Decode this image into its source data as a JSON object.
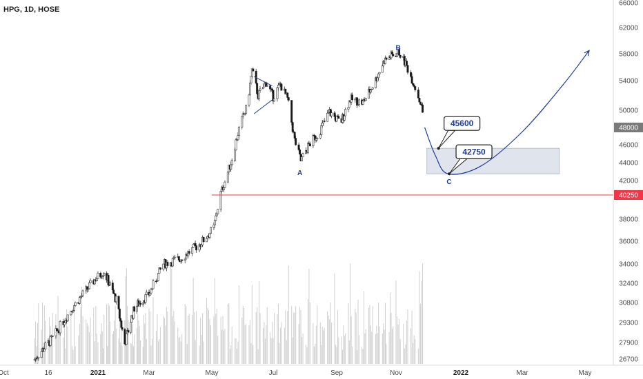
{
  "header": {
    "title": "HPG, 1D, HOSE"
  },
  "colors": {
    "up": "#f2f2f2",
    "down": "#1a1a1a",
    "wick": "#3a3a3a",
    "volume": "#cfcfcf",
    "support_line": "#f23645",
    "wave_path": "#1f3b99",
    "target_zone": "#d6dbe6",
    "last_price_badge": "#7a7a7a"
  },
  "chart_data": {
    "type": "candlestick",
    "symbol": "HPG",
    "interval": "1D",
    "exchange": "HOSE",
    "y_ticks": [
      26700,
      27900,
      29300,
      30800,
      32400,
      34000,
      36000,
      38000,
      40000,
      42000,
      44000,
      46000,
      48000,
      50000,
      54000,
      58000,
      62000,
      66000
    ],
    "x_ticks": [
      {
        "label": "Oct",
        "date": "2020-10-01",
        "bold": false
      },
      {
        "label": "16",
        "date": "2020-11-16",
        "bold": false
      },
      {
        "label": "2021",
        "date": "2021-01-01",
        "bold": true
      },
      {
        "label": "Mar",
        "date": "2021-03-01",
        "bold": false
      },
      {
        "label": "May",
        "date": "2021-05-01",
        "bold": false
      },
      {
        "label": "Jul",
        "date": "2021-07-01",
        "bold": false
      },
      {
        "label": "Sep",
        "date": "2021-09-01",
        "bold": false
      },
      {
        "label": "Nov",
        "date": "2021-11-01",
        "bold": false
      },
      {
        "label": "2022",
        "date": "2022-01-01",
        "bold": true
      },
      {
        "label": "Mar",
        "date": "2022-03-01",
        "bold": false
      },
      {
        "label": "May",
        "date": "2022-05-01",
        "bold": false
      }
    ],
    "price_path": [
      {
        "date": "2020-11-01",
        "close": 26600
      },
      {
        "date": "2020-11-20",
        "close": 28200
      },
      {
        "date": "2020-12-10",
        "close": 30600
      },
      {
        "date": "2020-12-30",
        "close": 32800
      },
      {
        "date": "2021-01-08",
        "close": 33400
      },
      {
        "date": "2021-01-22",
        "close": 31000
      },
      {
        "date": "2021-02-01",
        "close": 27800
      },
      {
        "date": "2021-02-12",
        "close": 30400
      },
      {
        "date": "2021-03-01",
        "close": 31500
      },
      {
        "date": "2021-03-15",
        "close": 34000
      },
      {
        "date": "2021-04-01",
        "close": 34500
      },
      {
        "date": "2021-04-20",
        "close": 35800
      },
      {
        "date": "2021-05-03",
        "close": 37200
      },
      {
        "date": "2021-05-10",
        "close": 40500
      },
      {
        "date": "2021-05-20",
        "close": 44000
      },
      {
        "date": "2021-05-28",
        "close": 47800
      },
      {
        "date": "2021-06-05",
        "close": 50500
      },
      {
        "date": "2021-06-10",
        "close": 55500
      },
      {
        "date": "2021-06-16",
        "close": 52000
      },
      {
        "date": "2021-06-24",
        "close": 53800
      },
      {
        "date": "2021-07-01",
        "close": 51800
      },
      {
        "date": "2021-07-08",
        "close": 53500
      },
      {
        "date": "2021-07-15",
        "close": 51500
      },
      {
        "date": "2021-07-22",
        "close": 46500
      },
      {
        "date": "2021-07-28",
        "close": 44200
      },
      {
        "date": "2021-08-05",
        "close": 46000
      },
      {
        "date": "2021-08-15",
        "close": 47500
      },
      {
        "date": "2021-08-25",
        "close": 49800
      },
      {
        "date": "2021-09-05",
        "close": 48500
      },
      {
        "date": "2021-09-15",
        "close": 51500
      },
      {
        "date": "2021-09-28",
        "close": 51000
      },
      {
        "date": "2021-10-10",
        "close": 53800
      },
      {
        "date": "2021-10-20",
        "close": 57000
      },
      {
        "date": "2021-10-28",
        "close": 57800
      },
      {
        "date": "2021-11-04",
        "close": 58200
      },
      {
        "date": "2021-11-10",
        "close": 56500
      },
      {
        "date": "2021-11-18",
        "close": 53500
      },
      {
        "date": "2021-11-24",
        "close": 51000
      },
      {
        "date": "2021-11-28",
        "close": 48500
      }
    ],
    "triangle_pattern": [
      {
        "date": "2021-06-12",
        "price": 54600
      },
      {
        "date": "2021-06-30",
        "price": 53300
      },
      {
        "date": "2021-06-12",
        "price": 49600
      },
      {
        "date": "2021-06-30",
        "price": 51400
      }
    ],
    "projection_path": [
      {
        "date": "2021-11-28",
        "price": 48000
      },
      {
        "date": "2021-12-08",
        "price": 44800
      },
      {
        "date": "2021-12-20",
        "price": 42750
      },
      {
        "date": "2022-01-20",
        "price": 43600
      },
      {
        "date": "2022-03-01",
        "price": 47500
      },
      {
        "date": "2022-04-10",
        "price": 53500
      },
      {
        "date": "2022-05-05",
        "price": 58500
      }
    ],
    "target_zone": {
      "from_date": "2021-11-30",
      "to_date": "2022-04-06",
      "low": 42750,
      "high": 45600
    },
    "support_line": {
      "price": 40250,
      "from_date": "2021-05-01"
    },
    "wave_labels": [
      {
        "label": "A",
        "date": "2021-07-27",
        "price": 42600
      },
      {
        "label": "B",
        "date": "2021-11-03",
        "price": 58600
      },
      {
        "label": "C",
        "date": "2021-12-21",
        "price": 41600
      }
    ],
    "callouts": [
      {
        "text": "45600",
        "date": "2021-12-11",
        "price": 45600
      },
      {
        "text": "42750",
        "date": "2021-12-21",
        "price": 42750
      }
    ],
    "last_price": 48000,
    "support_price_label": 40250,
    "volume_visible": true
  }
}
